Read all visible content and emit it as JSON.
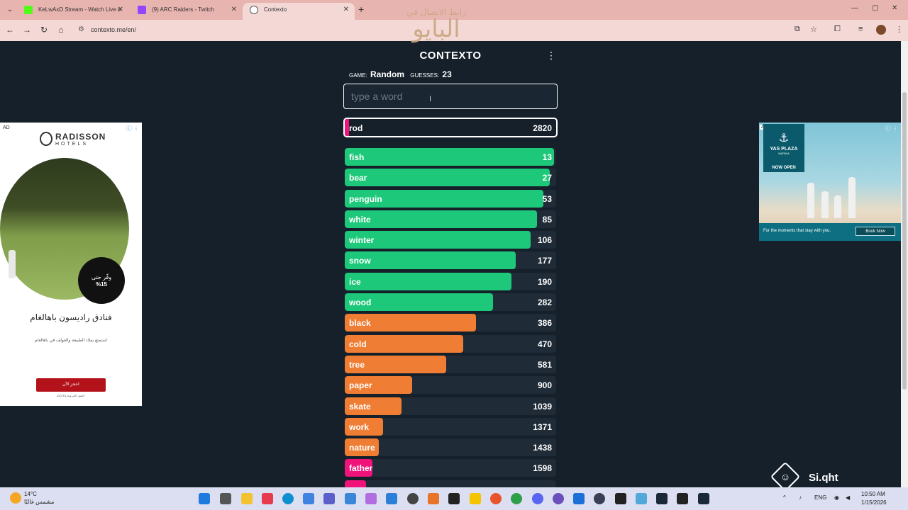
{
  "browser": {
    "tabs": [
      {
        "title": "KeLwAxD Stream - Watch Live o",
        "favicon_color": "#53fc18"
      },
      {
        "title": "(9) ARC Raiders - Twitch",
        "favicon_color": "#9146ff"
      },
      {
        "title": "Contexto",
        "favicon_color": "#ffffff"
      }
    ],
    "url": "contexto.me/en/"
  },
  "app": {
    "title": "CONTEXTO",
    "game_label": "GAME:",
    "game_value": "Random",
    "guesses_label": "GUESSES:",
    "guesses_value": "23",
    "input_placeholder": "type a word",
    "watermark_small": "رابط الاتصال في",
    "watermark_large": "البايو"
  },
  "latest_guess": {
    "word": "rod",
    "rank": "2820",
    "fill": 0.02,
    "color": "#f0147a"
  },
  "guesses": [
    {
      "word": "fish",
      "rank": "13",
      "fill": 0.99,
      "color": "#1ec87a"
    },
    {
      "word": "bear",
      "rank": "27",
      "fill": 0.97,
      "color": "#1ec87a"
    },
    {
      "word": "penguin",
      "rank": "53",
      "fill": 0.94,
      "color": "#1ec87a"
    },
    {
      "word": "white",
      "rank": "85",
      "fill": 0.91,
      "color": "#1ec87a"
    },
    {
      "word": "winter",
      "rank": "106",
      "fill": 0.88,
      "color": "#1ec87a"
    },
    {
      "word": "snow",
      "rank": "177",
      "fill": 0.81,
      "color": "#1ec87a"
    },
    {
      "word": "ice",
      "rank": "190",
      "fill": 0.79,
      "color": "#1ec87a"
    },
    {
      "word": "wood",
      "rank": "282",
      "fill": 0.7,
      "color": "#1ec87a"
    },
    {
      "word": "black",
      "rank": "386",
      "fill": 0.62,
      "color": "#ef7d33"
    },
    {
      "word": "cold",
      "rank": "470",
      "fill": 0.56,
      "color": "#ef7d33"
    },
    {
      "word": "tree",
      "rank": "581",
      "fill": 0.48,
      "color": "#ef7d33"
    },
    {
      "word": "paper",
      "rank": "900",
      "fill": 0.32,
      "color": "#ef7d33"
    },
    {
      "word": "skate",
      "rank": "1039",
      "fill": 0.27,
      "color": "#ef7d33"
    },
    {
      "word": "work",
      "rank": "1371",
      "fill": 0.18,
      "color": "#ef7d33"
    },
    {
      "word": "nature",
      "rank": "1438",
      "fill": 0.16,
      "color": "#ef7d33"
    },
    {
      "word": "father",
      "rank": "1598",
      "fill": 0.13,
      "color": "#f0147a"
    },
    {
      "word": "",
      "rank": "",
      "fill": 0.1,
      "color": "#f0147a"
    }
  ],
  "ad_left": {
    "tag": "AD",
    "brand": "RADISSON",
    "brand_sub": "HOTELS",
    "badge_line1": "وفّر حتى",
    "badge_line2": "%15",
    "title": "فنادق راديسون باهالغام",
    "subtitle": "استمتع بملاذ الطبيعة والعولف في باهالغام",
    "button": "احجز الآن",
    "footnote": "تطبق الشروط والأحكام*"
  },
  "ad_right": {
    "tag": "AD",
    "name": "YAS PLAZA",
    "sub": "MARINA",
    "now_open": "NOW OPEN",
    "tagline": "For the moments that stay with you.",
    "button": "Book Now"
  },
  "overlay": {
    "brand": "Si.qht"
  },
  "taskbar": {
    "temp": "14°C",
    "weather_desc": "مشمس غالبًا",
    "lang": "ENG",
    "time": "10:50 AM",
    "date": "1/15/2026"
  }
}
